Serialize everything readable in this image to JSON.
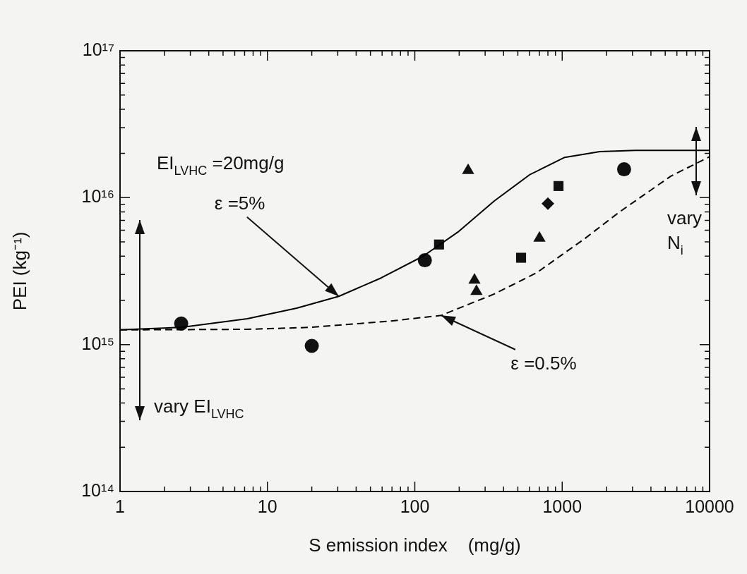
{
  "chart_data": {
    "type": "scatter",
    "xlabel": "S emission index    (mg/g)",
    "ylabel": "PEI (kg⁻¹)",
    "log": "xy",
    "grid": false,
    "legend": false,
    "xlim": [
      1,
      10000
    ],
    "ylim": [
      100000000000000.0,
      1e+17
    ],
    "xticks": [
      1,
      {
        "value": 2,
        "label": null
      },
      {
        "value": 3,
        "label": null
      },
      {
        "value": 4,
        "label": null
      },
      {
        "value": 5,
        "label": null
      },
      {
        "value": 6,
        "label": null
      },
      {
        "value": 7,
        "label": null
      },
      {
        "value": 8,
        "label": null
      },
      {
        "value": 9,
        "label": null
      },
      10,
      {
        "value": 20,
        "label": null
      },
      {
        "value": 30,
        "label": null
      },
      {
        "value": 40,
        "label": null
      },
      {
        "value": 50,
        "label": null
      },
      {
        "value": 60,
        "label": null
      },
      {
        "value": 70,
        "label": null
      },
      {
        "value": 80,
        "label": null
      },
      {
        "value": 90,
        "label": null
      },
      100,
      {
        "value": 200,
        "label": null
      },
      {
        "value": 300,
        "label": null
      },
      {
        "value": 400,
        "label": null
      },
      {
        "value": 500,
        "label": null
      },
      {
        "value": 600,
        "label": null
      },
      {
        "value": 700,
        "label": null
      },
      {
        "value": 800,
        "label": null
      },
      {
        "value": 900,
        "label": null
      },
      1000,
      {
        "value": 2000,
        "label": null
      },
      {
        "value": 3000,
        "label": null
      },
      {
        "value": 4000,
        "label": null
      },
      {
        "value": 5000,
        "label": null
      },
      {
        "value": 6000,
        "label": null
      },
      {
        "value": 7000,
        "label": null
      },
      {
        "value": 8000,
        "label": null
      },
      {
        "value": 9000,
        "label": null
      },
      10000
    ],
    "yticks": [
      {
        "value": 100000000000000.0,
        "label": "10¹⁴"
      },
      {
        "value": 200000000000000.0,
        "label": null
      },
      {
        "value": 300000000000000.0,
        "label": null
      },
      {
        "value": 400000000000000.0,
        "label": null
      },
      {
        "value": 500000000000000.0,
        "label": null
      },
      {
        "value": 600000000000000.0,
        "label": null
      },
      {
        "value": 700000000000000.0,
        "label": null
      },
      {
        "value": 800000000000000.0,
        "label": null
      },
      {
        "value": 900000000000000.0,
        "label": null
      },
      {
        "value": 1000000000000000.0,
        "label": "10¹⁵"
      },
      {
        "value": 2000000000000000.0,
        "label": null
      },
      {
        "value": 3000000000000000.0,
        "label": null
      },
      {
        "value": 4000000000000000.0,
        "label": null
      },
      {
        "value": 5000000000000000.0,
        "label": null
      },
      {
        "value": 6000000000000000.0,
        "label": null
      },
      {
        "value": 7000000000000000.0,
        "label": null
      },
      {
        "value": 8000000000000000.0,
        "label": null
      },
      {
        "value": 9000000000000000.0,
        "label": null
      },
      {
        "value": 1e+16,
        "label": "10¹⁶"
      },
      {
        "value": 2e+16,
        "label": null
      },
      {
        "value": 3e+16,
        "label": null
      },
      {
        "value": 4e+16,
        "label": null
      },
      {
        "value": 5e+16,
        "label": null
      },
      {
        "value": 6e+16,
        "label": null
      },
      {
        "value": 7e+16,
        "label": null
      },
      {
        "value": 8e+16,
        "label": null
      },
      {
        "value": 9e+16,
        "label": null
      },
      {
        "value": 1e+17,
        "label": "10¹⁷"
      }
    ],
    "series": [
      {
        "type": "line",
        "color": "#000000",
        "line_style": "solid",
        "marker": "none",
        "x": [
          1,
          2.6,
          7.3,
          15.8,
          30.5,
          59,
          114,
          199,
          346,
          600,
          1040,
          1800,
          3140,
          10000
        ],
        "values": [
          1260000000000000.0,
          1310000000000000.0,
          1500000000000000.0,
          1770000000000000.0,
          2130000000000000.0,
          2840000000000000.0,
          4000000000000000.0,
          5900000000000000.0,
          9500000000000000.0,
          1.43e+16,
          1.88e+16,
          2.06e+16,
          2.1e+16,
          2.1e+16
        ]
      },
      {
        "type": "line",
        "color": "#000000",
        "line_style": "dashed",
        "marker": "none",
        "x": [
          1,
          7.3,
          19.6,
          66,
          151,
          346,
          670,
          1400,
          2450,
          5450,
          10000
        ],
        "values": [
          1260000000000000.0,
          1270000000000000.0,
          1310000000000000.0,
          1440000000000000.0,
          1580000000000000.0,
          2210000000000000.0,
          3080000000000000.0,
          5200000000000000.0,
          8000000000000000.0,
          1.4e+16,
          1.9e+16
        ]
      },
      {
        "type": "scatter",
        "color": "#111111",
        "marker": "circle",
        "x": [
          2.6,
          20,
          117,
          2630
        ],
        "values": [
          1390000000000000.0,
          980000000000000.0,
          3750000000000000.0,
          1.56e+16
        ]
      },
      {
        "type": "scatter",
        "color": "#111111",
        "marker": "square",
        "x": [
          146,
          526,
          944
        ],
        "values": [
          4800000000000000.0,
          3900000000000000.0,
          1.2e+16
        ]
      },
      {
        "type": "scatter",
        "color": "#111111",
        "marker": "triangle",
        "x": [
          701,
          230,
          254,
          262
        ],
        "values": [
          5300000000000000.0,
          1.53e+16,
          2750000000000000.0,
          2300000000000000.0
        ]
      },
      {
        "type": "scatter",
        "color": "#111111",
        "marker": "diamond",
        "x": [
          800
        ],
        "values": [
          9100000000000000.0
        ]
      }
    ],
    "annotations": [
      "EI$_{LVHC}$ =20mg/g",
      {
        "text": "ε =5%",
        "x": 30.5,
        "y": 2130000000000000.0
      },
      {
        "text": "ε =0.5%",
        "x": 151,
        "y": 1580000000000000.0
      },
      "vary EI$_{LVHC}$",
      "vary N$_{i}$"
    ]
  }
}
